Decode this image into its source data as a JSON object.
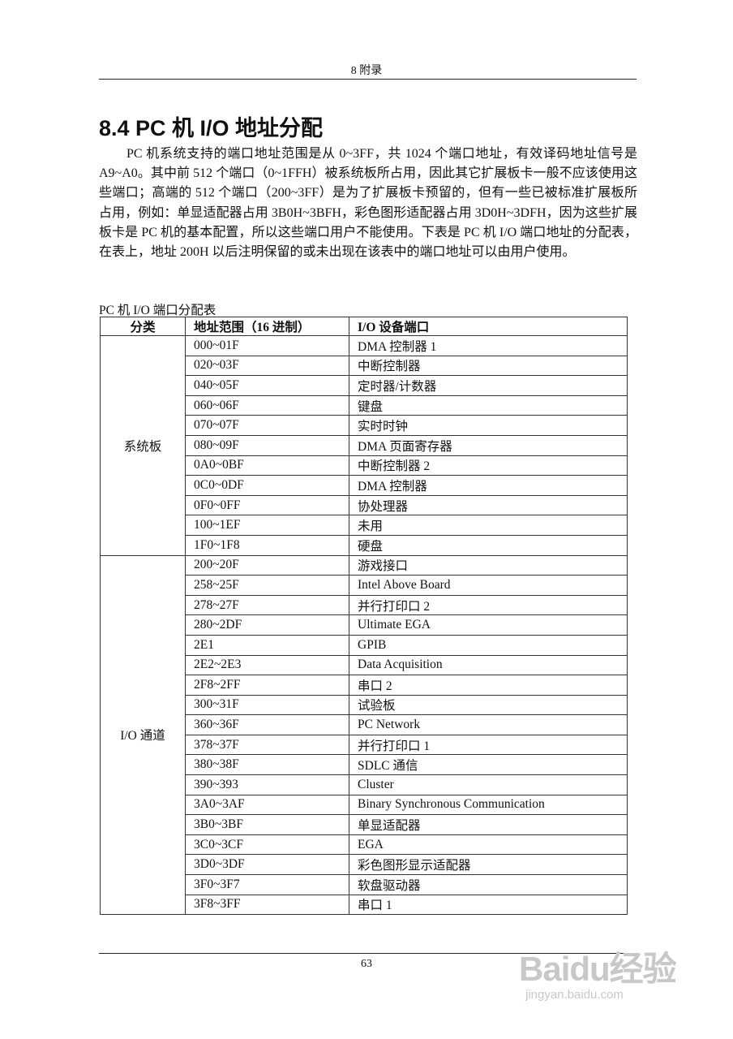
{
  "header": {
    "running_title": "8  附录"
  },
  "section": {
    "title": "8.4 PC 机 I/O 地址分配",
    "paragraph": "PC 机系统支持的端口地址范围是从 0~3FF，共 1024 个端口地址，有效译码地址信号是 A9~A0。其中前 512 个端口（0~1FFH）被系统板所占用，因此其它扩展板卡一般不应该使用这些端口；高端的 512 个端口（200~3FF）是为了扩展板卡预留的，但有一些已被标准扩展板所占用，例如：单显适配器占用 3B0H~3BFH，彩色图形适配器占用 3D0H~3DFH，因为这些扩展板卡是 PC 机的基本配置，所以这些端口用户不能使用。下表是 PC 机 I/O 端口地址的分配表，在表上，地址 200H 以后注明保留的或未出现在该表中的端口地址可以由用户使用。"
  },
  "table": {
    "caption": "PC 机 I/O 端口分配表",
    "headers": [
      "分类",
      "地址范围（16 进制）",
      "I/O 设备端口"
    ],
    "groups": [
      {
        "category": "系统板",
        "rows": [
          [
            "000~01F",
            "DMA 控制器 1"
          ],
          [
            "020~03F",
            "中断控制器"
          ],
          [
            "040~05F",
            "定时器/计数器"
          ],
          [
            "060~06F",
            "键盘"
          ],
          [
            "070~07F",
            "实时时钟"
          ],
          [
            "080~09F",
            "DMA 页面寄存器"
          ],
          [
            "0A0~0BF",
            "中断控制器 2"
          ],
          [
            "0C0~0DF",
            "DMA 控制器"
          ],
          [
            "0F0~0FF",
            "协处理器"
          ],
          [
            "100~1EF",
            "未用"
          ],
          [
            "1F0~1F8",
            "硬盘"
          ]
        ]
      },
      {
        "category": "I/O 通道",
        "rows": [
          [
            "200~20F",
            "游戏接口"
          ],
          [
            "258~25F",
            "Intel Above Board"
          ],
          [
            "278~27F",
            "并行打印口 2"
          ],
          [
            "280~2DF",
            "Ultimate EGA"
          ],
          [
            "2E1",
            "GPIB"
          ],
          [
            "2E2~2E3",
            "Data Acquisition"
          ],
          [
            "2F8~2FF",
            "串口 2"
          ],
          [
            "300~31F",
            "试验板"
          ],
          [
            "360~36F",
            "PC Network"
          ],
          [
            "378~37F",
            "并行打印口 1"
          ],
          [
            "380~38F",
            "SDLC 通信"
          ],
          [
            "390~393",
            "Cluster"
          ],
          [
            "3A0~3AF",
            "Binary Synchronous Communication"
          ],
          [
            "3B0~3BF",
            "单显适配器"
          ],
          [
            "3C0~3CF",
            "EGA"
          ],
          [
            "3D0~3DF",
            "彩色图形显示适配器"
          ],
          [
            "3F0~3F7",
            "软盘驱动器"
          ],
          [
            "3F8~3FF",
            "串口 1"
          ]
        ]
      }
    ]
  },
  "footer": {
    "page_number": "63"
  },
  "watermark": {
    "brand": "Baidu经验",
    "url": "jingyan.baidu.com"
  }
}
